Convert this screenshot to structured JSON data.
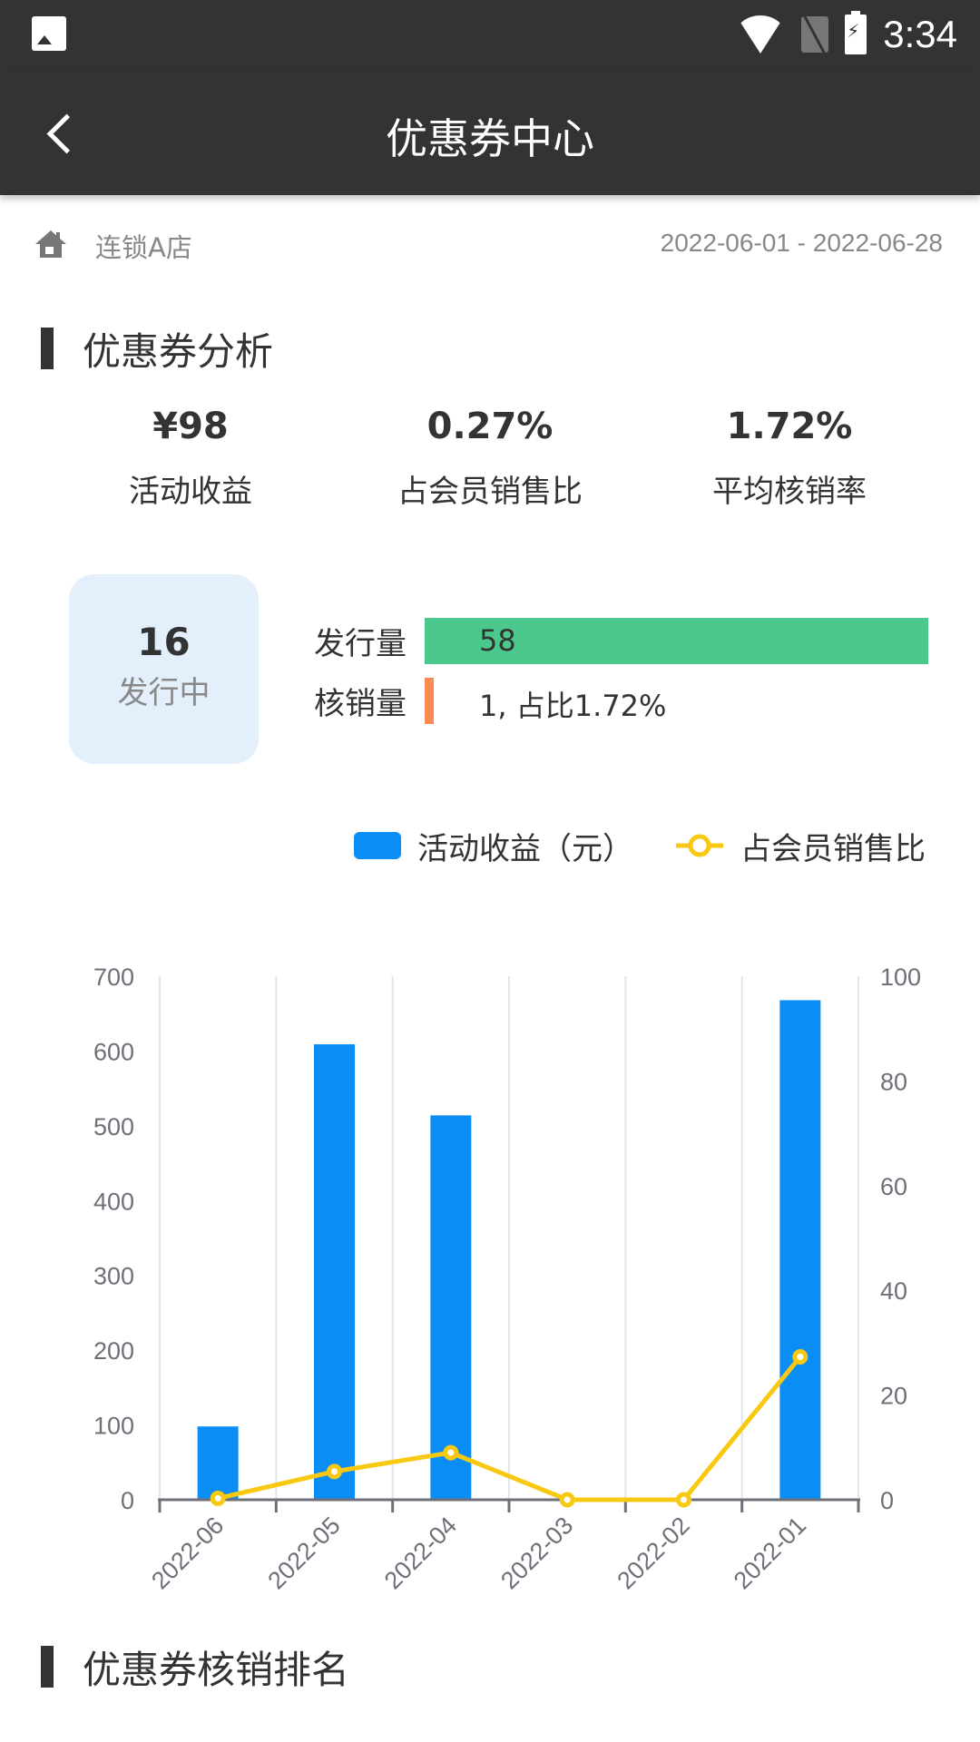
{
  "status_bar": {
    "time": "3:34",
    "icons": [
      "image-notification-icon",
      "wifi-icon",
      "no-sim-icon",
      "battery-charging-icon"
    ]
  },
  "app_bar": {
    "title": "优惠券中心",
    "back_icon": "chevron-left-icon"
  },
  "store": {
    "icon": "home-icon",
    "name": "连锁A店",
    "date_range": "2022-06-01 - 2022-06-28"
  },
  "analysis": {
    "title": "优惠券分析",
    "kpis": [
      {
        "value": "¥98",
        "label": "活动收益"
      },
      {
        "value": "0.27%",
        "label": "占会员销售比"
      },
      {
        "value": "1.72%",
        "label": "平均核销率"
      }
    ],
    "issuing": {
      "count": "16",
      "label": "发行中"
    },
    "bars": [
      {
        "label": "发行量",
        "value": "58",
        "color": "#4bc88b"
      },
      {
        "label": "核销量",
        "value": "1, 占比1.72%",
        "color": "#fa8952"
      }
    ]
  },
  "colors": {
    "bar": "#0a8ef5",
    "line": "#f9c912",
    "grid": "#dfe6ef",
    "axis": "#6e7079",
    "header": "#333335"
  },
  "chart_data": {
    "type": "bar",
    "title": "",
    "categories": [
      "2022-06",
      "2022-05",
      "2022-04",
      "2022-03",
      "2022-02",
      "2022-01"
    ],
    "series": [
      {
        "name": "活动收益（元）",
        "type": "bar",
        "axis": "left",
        "values": [
          98,
          609,
          514,
          0,
          0,
          668
        ]
      },
      {
        "name": "占会员销售比",
        "type": "line",
        "axis": "right",
        "values": [
          0.27,
          5.4,
          9.0,
          0,
          0,
          27.3
        ]
      }
    ],
    "y_left": {
      "ticks": [
        0,
        100,
        200,
        300,
        400,
        500,
        600,
        700
      ],
      "ylim": [
        0,
        700
      ]
    },
    "y_right": {
      "ticks": [
        0,
        20,
        40,
        60,
        80,
        100
      ],
      "ylim": [
        0,
        100
      ]
    },
    "xlabel": "",
    "ylabel": "",
    "grid": "vertical",
    "legend_position": "top-right"
  },
  "ranking": {
    "title": "优惠券核销排名"
  }
}
